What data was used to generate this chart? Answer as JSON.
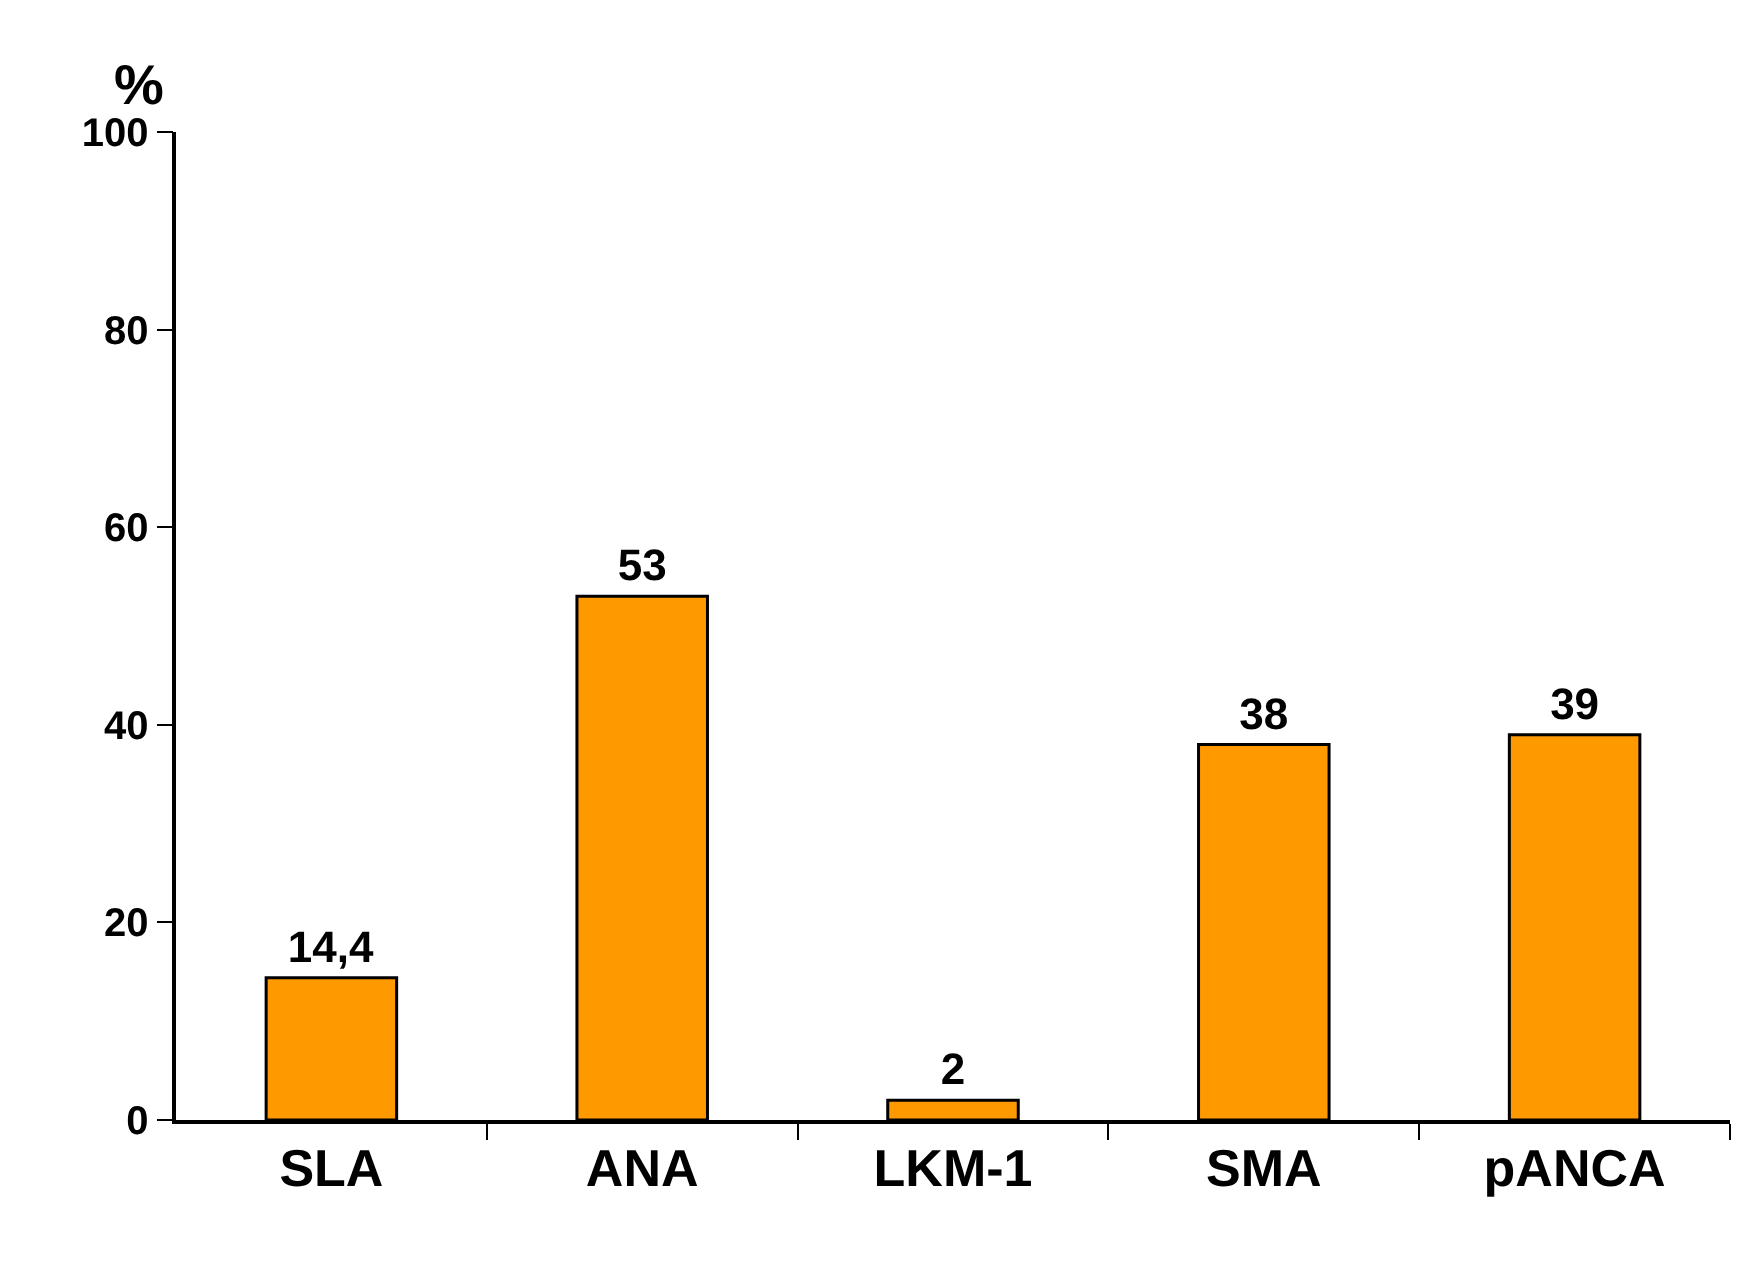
{
  "chart_data": {
    "type": "bar",
    "ylabel": "%",
    "categories": [
      "SLA",
      "ANA",
      "LKM-1",
      "SMA",
      "pANCA"
    ],
    "values": [
      14.4,
      53,
      2,
      38,
      39
    ],
    "value_labels": [
      "14,4",
      "53",
      "2",
      "38",
      "39"
    ],
    "color": "#ff9900",
    "ylim": [
      0,
      100
    ],
    "yticks": [
      0,
      20,
      40,
      60,
      80,
      100
    ]
  }
}
